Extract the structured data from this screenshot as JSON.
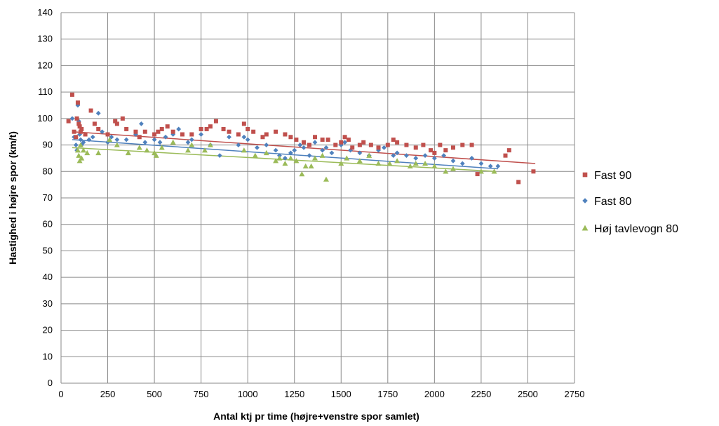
{
  "chart_data": {
    "type": "scatter",
    "title": "",
    "xlabel": "Antal ktj pr time (højre+venstre spor samlet)",
    "ylabel": "Hastighed i højre spor (km/t)",
    "xlim": [
      0,
      2750
    ],
    "ylim": [
      0,
      140
    ],
    "x_ticks": [
      0,
      250,
      500,
      750,
      1000,
      1250,
      1500,
      1750,
      2000,
      2250,
      2500,
      2750
    ],
    "y_ticks": [
      0,
      10,
      20,
      30,
      40,
      50,
      60,
      70,
      80,
      90,
      100,
      110,
      120,
      130,
      140
    ],
    "grid": true,
    "legend_position": "right",
    "series": [
      {
        "name": "Fast 90",
        "color": "#C0504D",
        "marker": "square",
        "trendline": [
          [
            60,
            95
          ],
          [
            2540,
            83
          ]
        ],
        "points": [
          [
            40,
            99
          ],
          [
            60,
            109
          ],
          [
            70,
            95
          ],
          [
            80,
            93
          ],
          [
            85,
            100
          ],
          [
            90,
            106
          ],
          [
            95,
            98
          ],
          [
            100,
            97
          ],
          [
            105,
            95
          ],
          [
            110,
            96
          ],
          [
            130,
            94
          ],
          [
            160,
            103
          ],
          [
            180,
            98
          ],
          [
            200,
            96
          ],
          [
            250,
            94
          ],
          [
            290,
            99
          ],
          [
            300,
            98
          ],
          [
            330,
            100
          ],
          [
            350,
            96
          ],
          [
            400,
            95
          ],
          [
            420,
            93
          ],
          [
            450,
            95
          ],
          [
            500,
            94
          ],
          [
            520,
            95
          ],
          [
            540,
            96
          ],
          [
            570,
            97
          ],
          [
            600,
            95
          ],
          [
            650,
            94
          ],
          [
            700,
            94
          ],
          [
            750,
            96
          ],
          [
            780,
            96
          ],
          [
            800,
            97
          ],
          [
            830,
            99
          ],
          [
            870,
            96
          ],
          [
            900,
            95
          ],
          [
            950,
            94
          ],
          [
            980,
            98
          ],
          [
            1000,
            96
          ],
          [
            1030,
            95
          ],
          [
            1080,
            93
          ],
          [
            1100,
            94
          ],
          [
            1150,
            95
          ],
          [
            1200,
            94
          ],
          [
            1230,
            93
          ],
          [
            1260,
            92
          ],
          [
            1300,
            91
          ],
          [
            1330,
            90
          ],
          [
            1360,
            93
          ],
          [
            1400,
            92
          ],
          [
            1430,
            92
          ],
          [
            1470,
            90
          ],
          [
            1500,
            91
          ],
          [
            1520,
            93
          ],
          [
            1540,
            92
          ],
          [
            1560,
            89
          ],
          [
            1600,
            90
          ],
          [
            1620,
            91
          ],
          [
            1660,
            90
          ],
          [
            1700,
            89
          ],
          [
            1750,
            90
          ],
          [
            1780,
            92
          ],
          [
            1800,
            91
          ],
          [
            1850,
            90
          ],
          [
            1900,
            89
          ],
          [
            1940,
            90
          ],
          [
            1980,
            88
          ],
          [
            2000,
            87
          ],
          [
            2030,
            90
          ],
          [
            2060,
            88
          ],
          [
            2100,
            89
          ],
          [
            2150,
            90
          ],
          [
            2200,
            90
          ],
          [
            2230,
            79
          ],
          [
            2380,
            86
          ],
          [
            2400,
            88
          ],
          [
            2450,
            76
          ],
          [
            2530,
            80
          ]
        ]
      },
      {
        "name": "Fast 80",
        "color": "#4F81BD",
        "marker": "diamond",
        "trendline": [
          [
            60,
            92
          ],
          [
            2340,
            81
          ]
        ],
        "points": [
          [
            60,
            100
          ],
          [
            70,
            93
          ],
          [
            80,
            90
          ],
          [
            85,
            88
          ],
          [
            90,
            105
          ],
          [
            95,
            99
          ],
          [
            100,
            94
          ],
          [
            105,
            92
          ],
          [
            110,
            90
          ],
          [
            120,
            91
          ],
          [
            150,
            92
          ],
          [
            170,
            93
          ],
          [
            200,
            102
          ],
          [
            220,
            95
          ],
          [
            250,
            91
          ],
          [
            270,
            93
          ],
          [
            300,
            92
          ],
          [
            350,
            92
          ],
          [
            400,
            94
          ],
          [
            430,
            98
          ],
          [
            450,
            91
          ],
          [
            500,
            92
          ],
          [
            530,
            91
          ],
          [
            560,
            93
          ],
          [
            600,
            94
          ],
          [
            630,
            96
          ],
          [
            680,
            91
          ],
          [
            700,
            92
          ],
          [
            750,
            94
          ],
          [
            800,
            90
          ],
          [
            850,
            86
          ],
          [
            900,
            93
          ],
          [
            950,
            90
          ],
          [
            980,
            93
          ],
          [
            1000,
            92
          ],
          [
            1050,
            89
          ],
          [
            1100,
            90
          ],
          [
            1150,
            88
          ],
          [
            1170,
            86
          ],
          [
            1200,
            85
          ],
          [
            1230,
            87
          ],
          [
            1250,
            88
          ],
          [
            1280,
            90
          ],
          [
            1300,
            89
          ],
          [
            1330,
            86
          ],
          [
            1360,
            91
          ],
          [
            1400,
            88
          ],
          [
            1420,
            89
          ],
          [
            1450,
            87
          ],
          [
            1500,
            90
          ],
          [
            1520,
            91
          ],
          [
            1550,
            88
          ],
          [
            1600,
            87
          ],
          [
            1650,
            86
          ],
          [
            1700,
            88
          ],
          [
            1730,
            89
          ],
          [
            1780,
            86
          ],
          [
            1800,
            87
          ],
          [
            1850,
            86
          ],
          [
            1900,
            85
          ],
          [
            1950,
            86
          ],
          [
            2000,
            85
          ],
          [
            2050,
            86
          ],
          [
            2100,
            84
          ],
          [
            2150,
            83
          ],
          [
            2200,
            85
          ],
          [
            2250,
            83
          ],
          [
            2300,
            82
          ],
          [
            2340,
            82
          ]
        ]
      },
      {
        "name": "Høj tavlevogn 80",
        "color": "#9BBB59",
        "marker": "triangle",
        "trendline": [
          [
            60,
            89
          ],
          [
            2330,
            80
          ]
        ],
        "points": [
          [
            90,
            88
          ],
          [
            95,
            86
          ],
          [
            100,
            84
          ],
          [
            105,
            90
          ],
          [
            110,
            85
          ],
          [
            120,
            88
          ],
          [
            140,
            87
          ],
          [
            200,
            87
          ],
          [
            260,
            92
          ],
          [
            300,
            90
          ],
          [
            360,
            87
          ],
          [
            420,
            89
          ],
          [
            460,
            88
          ],
          [
            500,
            87
          ],
          [
            510,
            86
          ],
          [
            540,
            89
          ],
          [
            600,
            91
          ],
          [
            680,
            88
          ],
          [
            700,
            90
          ],
          [
            770,
            88
          ],
          [
            800,
            90
          ],
          [
            980,
            88
          ],
          [
            1040,
            86
          ],
          [
            1100,
            87
          ],
          [
            1150,
            84
          ],
          [
            1170,
            85
          ],
          [
            1200,
            83
          ],
          [
            1230,
            85
          ],
          [
            1260,
            84
          ],
          [
            1290,
            79
          ],
          [
            1310,
            82
          ],
          [
            1340,
            82
          ],
          [
            1360,
            85
          ],
          [
            1400,
            86
          ],
          [
            1420,
            77
          ],
          [
            1500,
            83
          ],
          [
            1530,
            85
          ],
          [
            1600,
            84
          ],
          [
            1650,
            86
          ],
          [
            1700,
            83
          ],
          [
            1760,
            83
          ],
          [
            1800,
            84
          ],
          [
            1870,
            82
          ],
          [
            1900,
            83
          ],
          [
            1950,
            83
          ],
          [
            2000,
            82
          ],
          [
            2060,
            80
          ],
          [
            2100,
            81
          ],
          [
            2250,
            80
          ],
          [
            2320,
            80
          ]
        ]
      }
    ]
  }
}
